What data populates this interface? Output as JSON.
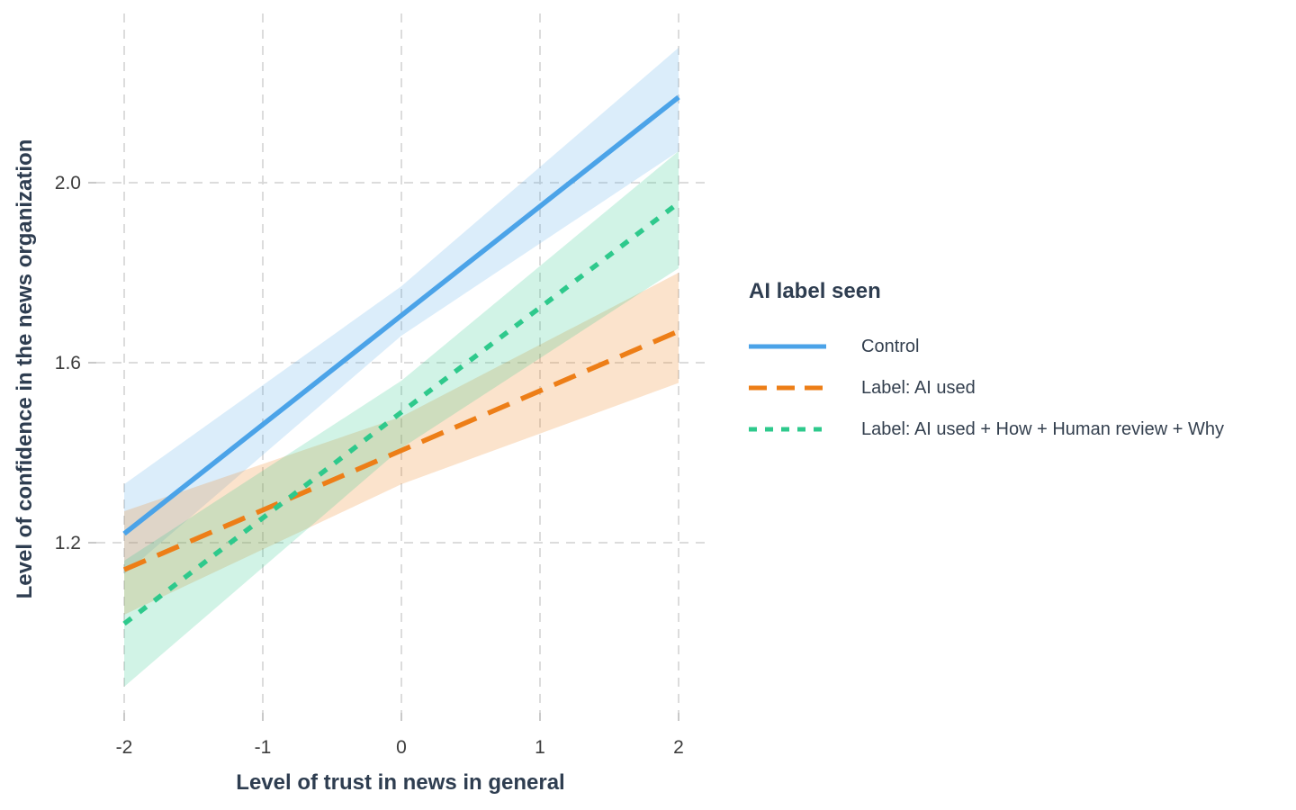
{
  "figure": {
    "background": "#ffffff"
  },
  "legend": {
    "title": "AI label seen",
    "position": "right"
  },
  "colors": {
    "grid": "#d8d8d8",
    "tick_mark": "#c9c9c9",
    "tick_label": "#3d3d3d",
    "axis_title": "#2e3d50",
    "legend_title": "#2e3d50",
    "legend_label": "#333f4e",
    "background": "#ffffff"
  },
  "chart_data": {
    "type": "line",
    "title": "",
    "xlabel": "Level of trust in news in general",
    "ylabel": "Level of confidence in the news organization",
    "x_ticks": [
      -2,
      -1,
      0,
      1,
      2
    ],
    "x_tick_labels": [
      "-2",
      "-1",
      "0",
      "1",
      "2"
    ],
    "y_ticks": [
      1.2,
      1.6,
      2.0
    ],
    "y_tick_labels": [
      "1.2",
      "1.6",
      "2.0"
    ],
    "xlim": [
      -2.17,
      2.2
    ],
    "ylim": [
      0.83,
      2.38
    ],
    "grid": true,
    "grid_style": "dashed",
    "legend_position": "right",
    "x": [
      -2,
      0,
      2
    ],
    "series": [
      {
        "name": "Control",
        "style": "solid",
        "color": "#4ba3e8",
        "values": [
          1.22,
          1.705,
          2.19
        ],
        "ci_lower": [
          1.13,
          1.66,
          2.07
        ],
        "ci_upper": [
          1.33,
          1.77,
          2.3
        ]
      },
      {
        "name": "Label: AI used",
        "style": "dashed",
        "color": "#ed7e17",
        "values": [
          1.14,
          1.405,
          1.67
        ],
        "ci_lower": [
          1.04,
          1.33,
          1.555
        ],
        "ci_upper": [
          1.27,
          1.48,
          1.8
        ]
      },
      {
        "name": "Label: AI used + How + Human review + Why",
        "style": "dotted",
        "color": "#2ec98c",
        "values": [
          1.02,
          1.49,
          1.955
        ],
        "ci_lower": [
          0.88,
          1.41,
          1.81
        ],
        "ci_upper": [
          1.16,
          1.56,
          2.07
        ]
      }
    ]
  }
}
